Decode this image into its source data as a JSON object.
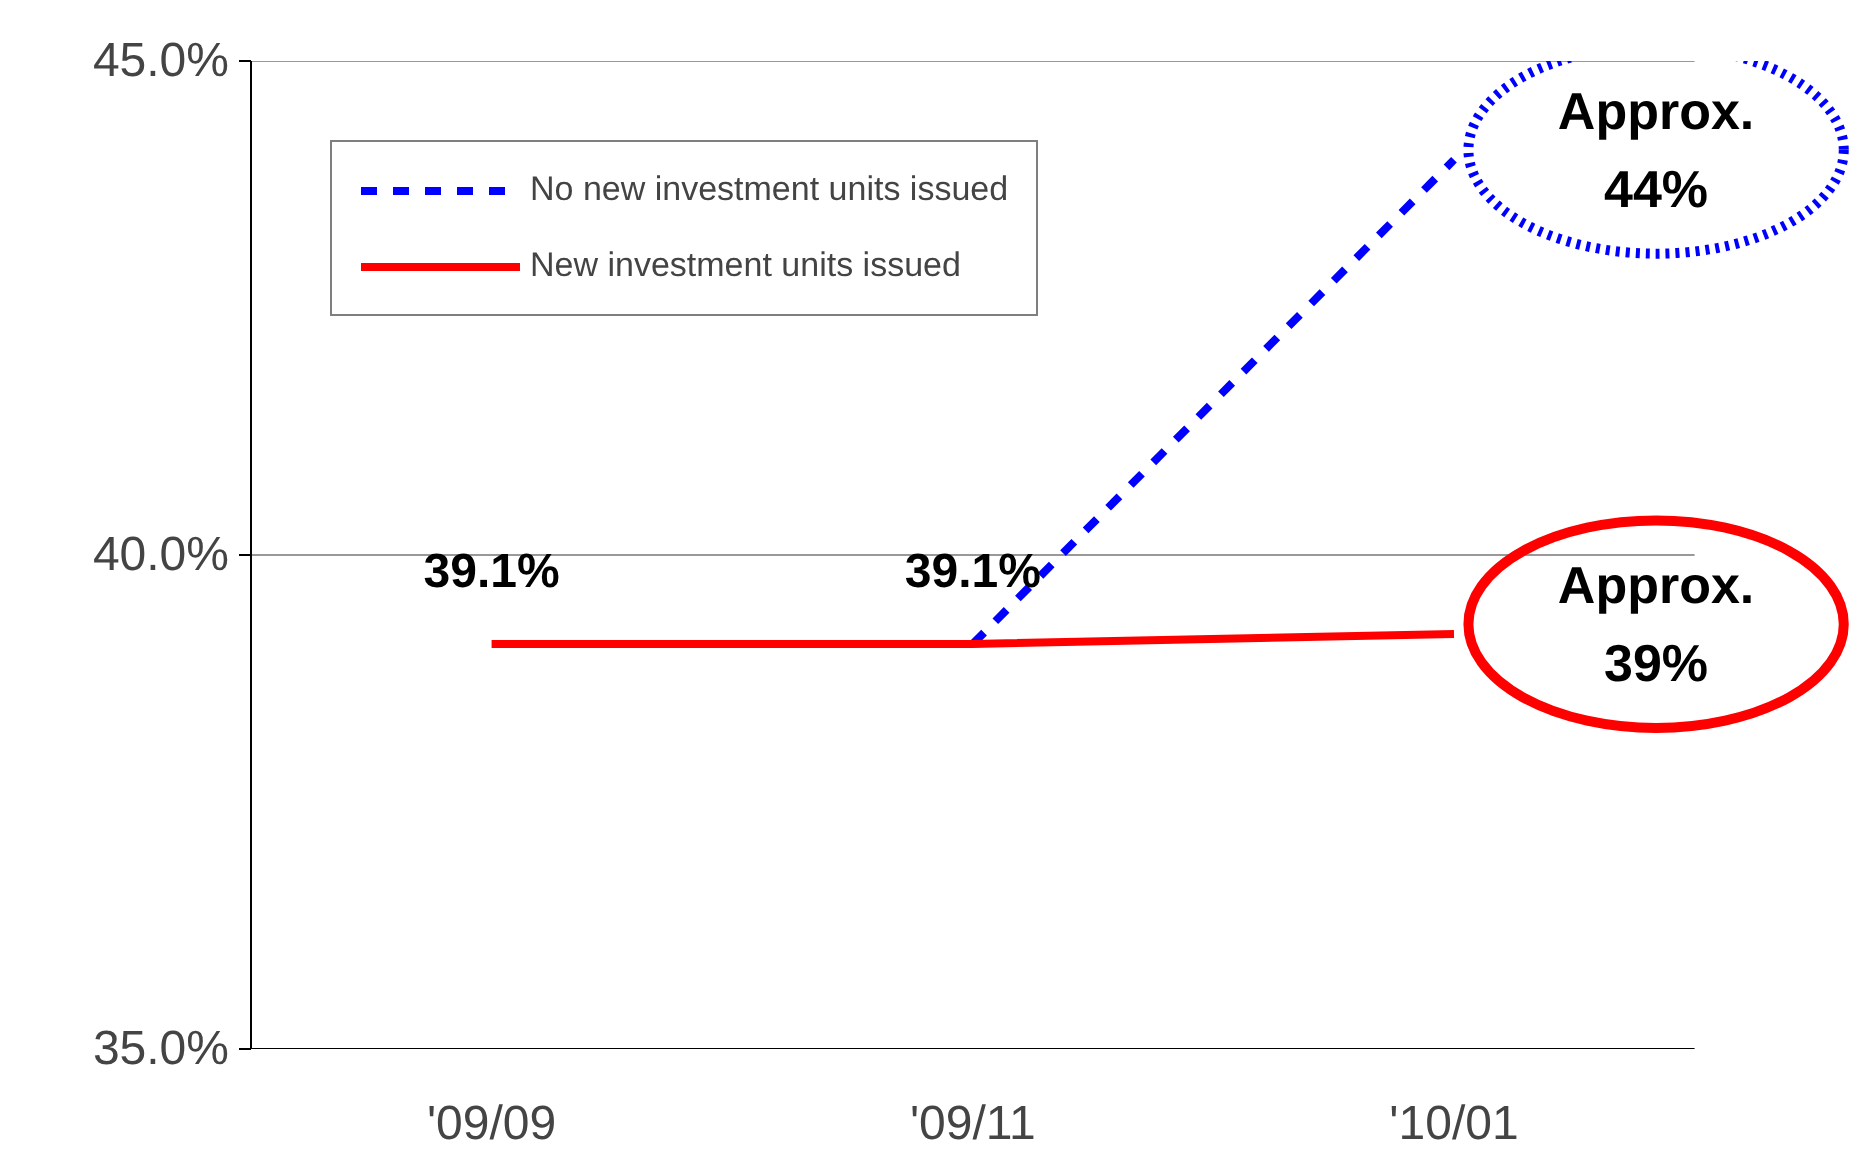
{
  "chart_data": {
    "type": "line",
    "categories": [
      "'09/09",
      "'09/11",
      "'10/01"
    ],
    "series": [
      {
        "name": "No new investment units issued",
        "color": "#0000ff",
        "line_style": "dashed",
        "values": [
          null,
          39.1,
          44.0
        ]
      },
      {
        "name": "New investment units issued",
        "color": "#ff0000",
        "line_style": "solid",
        "values": [
          39.1,
          39.1,
          39.2
        ],
        "value_labels": [
          "39.1%",
          "39.1%",
          null
        ]
      }
    ],
    "ylim": [
      35,
      45
    ],
    "yticks": [
      {
        "value": 35,
        "label": "35.0%"
      },
      {
        "value": 40,
        "label": "40.0%"
      },
      {
        "value": 45,
        "label": "45.0%"
      }
    ],
    "grid": "y",
    "legend": "top left",
    "marker": "none",
    "annotations": [
      {
        "text": "Approx.\n44%",
        "x": "'10/01",
        "y": 44.0
      },
      {
        "text": "Approx.\n39%",
        "x": "'10/01",
        "y": 39.2
      }
    ]
  }
}
